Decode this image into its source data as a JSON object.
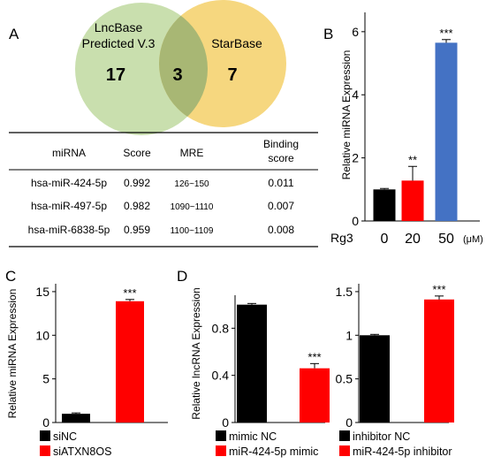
{
  "panels": {
    "A": {
      "label": "A",
      "venn": {
        "left_label_line1": "LncBase",
        "left_label_line2": "Predicted V.3",
        "right_label": "StarBase",
        "left_only": "17",
        "overlap": "3",
        "right_only": "7",
        "left_color": "#c9dfae",
        "right_color": "#f6d77f",
        "overlap_color": "#a8b774"
      },
      "table": {
        "headers": [
          "miRNA",
          "Score",
          "MRE",
          "Binding",
          "score"
        ],
        "rows": [
          {
            "mirna": "hsa-miR-424-5p",
            "score": "0.992",
            "mre": "126~150",
            "binding": "0.011"
          },
          {
            "mirna": "hsa-miR-497-5p",
            "score": "0.982",
            "mre": "1090~1110",
            "binding": "0.007"
          },
          {
            "mirna": "hsa-miR-6838-5p",
            "score": "0.959",
            "mre": "1100~1109",
            "binding": "0.008"
          }
        ]
      }
    },
    "B": {
      "label": "B"
    },
    "C": {
      "label": "C"
    },
    "D": {
      "label": "D"
    }
  },
  "chart_data": [
    {
      "id": "B",
      "type": "bar",
      "ylabel": "Relative  miRNA Expression",
      "xprefix": "Rg3",
      "xunit": "(μM)",
      "categories": [
        "0",
        "20",
        "50"
      ],
      "values": [
        1.0,
        1.28,
        5.65
      ],
      "errors": [
        0.03,
        0.45,
        0.1
      ],
      "colors": [
        "#000000",
        "#ff0000",
        "#4472c4"
      ],
      "significance": [
        "",
        "**",
        "***"
      ],
      "ylim": [
        0,
        6.5
      ],
      "yticks": [
        "0",
        "2",
        "4",
        "6"
      ],
      "ytick_values": [
        0,
        2,
        4,
        6
      ]
    },
    {
      "id": "C",
      "type": "bar",
      "ylabel": "Relative  miRNA Expression",
      "categories": [
        "siNC",
        "siATXN8OS"
      ],
      "values": [
        1.0,
        13.9
      ],
      "errors": [
        0.1,
        0.2
      ],
      "colors": [
        "#000000",
        "#ff0000"
      ],
      "significance": [
        "",
        "***"
      ],
      "ylim": [
        0,
        15.5
      ],
      "yticks": [
        "0",
        "5",
        "10",
        "15"
      ],
      "ytick_values": [
        0,
        5,
        10,
        15
      ],
      "legend": [
        "siNC",
        "siATXN8OS"
      ]
    },
    {
      "id": "D-mimic",
      "type": "bar",
      "ylabel": "Relative  lncRNA Expression",
      "categories": [
        "mimic NC",
        "miR-424-5p mimic"
      ],
      "values": [
        1.0,
        0.46
      ],
      "errors": [
        0.01,
        0.04
      ],
      "colors": [
        "#000000",
        "#ff0000"
      ],
      "significance": [
        "",
        "***"
      ],
      "ylim": [
        0,
        1.05
      ],
      "yticks": [
        "0",
        "0.4",
        "0.8"
      ],
      "ytick_values": [
        0,
        0.4,
        0.8
      ],
      "legend": [
        "mimic NC",
        "miR-424-5p mimic"
      ]
    },
    {
      "id": "D-inhibitor",
      "type": "bar",
      "ylabel": "",
      "categories": [
        "inhibitor NC",
        "miR-424-5p inhibitor"
      ],
      "values": [
        1.0,
        1.41
      ],
      "errors": [
        0.01,
        0.04
      ],
      "colors": [
        "#000000",
        "#ff0000"
      ],
      "significance": [
        "",
        "***"
      ],
      "ylim": [
        0,
        1.55
      ],
      "yticks": [
        "0",
        "0.5",
        "1",
        "1.5"
      ],
      "ytick_values": [
        0,
        0.5,
        1,
        1.5
      ],
      "legend": [
        "inhibitor NC",
        "miR-424-5p inhibitor"
      ]
    }
  ]
}
